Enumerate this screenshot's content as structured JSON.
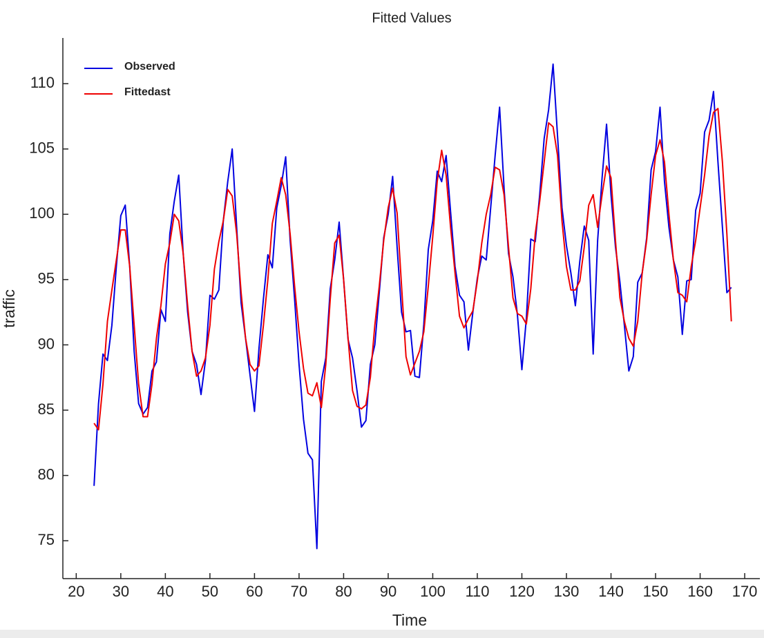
{
  "chart_data": {
    "type": "line",
    "title": "Fitted Values",
    "x_label": "Time",
    "y_label": "traffic",
    "x": [
      24,
      25,
      26,
      27,
      28,
      29,
      30,
      31,
      32,
      33,
      34,
      35,
      36,
      37,
      38,
      39,
      40,
      41,
      42,
      43,
      44,
      45,
      46,
      47,
      48,
      49,
      50,
      51,
      52,
      53,
      54,
      55,
      56,
      57,
      58,
      59,
      60,
      61,
      62,
      63,
      64,
      65,
      66,
      67,
      68,
      69,
      70,
      71,
      72,
      73,
      74,
      75,
      76,
      77,
      78,
      79,
      80,
      81,
      82,
      83,
      84,
      85,
      86,
      87,
      88,
      89,
      90,
      91,
      92,
      93,
      94,
      95,
      96,
      97,
      98,
      99,
      100,
      101,
      102,
      103,
      104,
      105,
      106,
      107,
      108,
      109,
      110,
      111,
      112,
      113,
      114,
      115,
      116,
      117,
      118,
      119,
      120,
      121,
      122,
      123,
      124,
      125,
      126,
      127,
      128,
      129,
      130,
      131,
      132,
      133,
      134,
      135,
      136,
      137,
      138,
      139,
      140,
      141,
      142,
      143,
      144,
      145,
      146,
      147,
      148,
      149,
      150,
      151,
      152,
      153,
      154,
      155,
      156,
      157,
      158,
      159,
      160,
      161,
      162,
      163,
      164,
      165,
      166,
      167
    ],
    "series": [
      {
        "name": "Observed",
        "color": "#0000e0",
        "values": [
          79.2,
          85.5,
          89.3,
          88.8,
          91.5,
          96,
          99.9,
          100.7,
          96,
          89.5,
          85.5,
          84.7,
          85.2,
          88,
          88.7,
          92.7,
          91.8,
          98.5,
          101,
          103,
          97,
          92.5,
          89.5,
          88.5,
          86.2,
          88.8,
          93.8,
          93.5,
          94.2,
          99.5,
          102.5,
          105,
          99,
          93.2,
          90.5,
          87.7,
          84.9,
          89.7,
          93.5,
          96.9,
          95.9,
          100.5,
          102.2,
          104.4,
          98,
          93.5,
          88.5,
          84.3,
          81.7,
          81.2,
          74.4,
          87.2,
          89,
          94.3,
          96.5,
          99.4,
          95,
          90.4,
          89,
          86.5,
          83.7,
          84.2,
          88.5,
          90,
          94,
          98.2,
          100,
          102.9,
          97.5,
          92.5,
          91,
          91.1,
          87.6,
          87.5,
          91.6,
          97.3,
          99.5,
          103.3,
          102.5,
          104.5,
          100.2,
          96,
          93.8,
          93.3,
          89.6,
          92.5,
          95.1,
          96.8,
          96.5,
          100.5,
          104.5,
          108.2,
          102,
          97,
          95.2,
          92.3,
          88.1,
          92,
          98.1,
          97.9,
          101.5,
          105.8,
          108,
          111.5,
          106,
          100.5,
          97.6,
          95.5,
          93,
          96.4,
          99.1,
          98,
          89.3,
          98,
          102.8,
          106.9,
          101.5,
          97.5,
          94.8,
          91.5,
          88,
          89.1,
          94.8,
          95.5,
          98.2,
          103.4,
          104.8,
          108.2,
          102.5,
          99,
          96.5,
          95.2,
          90.8,
          94.9,
          95,
          100.3,
          101.6,
          106.3,
          107.2,
          109.4,
          104,
          99,
          94,
          94.4
        ]
      },
      {
        "name": "Fittedast",
        "color": "#ee0000",
        "values": [
          84,
          83.5,
          87,
          91.8,
          94.2,
          96.5,
          98.8,
          98.8,
          96,
          91.5,
          87,
          84.5,
          84.5,
          87,
          90.5,
          93,
          96.2,
          97.8,
          100,
          99.5,
          97,
          93,
          89.5,
          87.6,
          88,
          89,
          91.5,
          95.8,
          97.9,
          99.5,
          101.9,
          101.4,
          98.5,
          94,
          90.5,
          88.5,
          88,
          88.4,
          91.5,
          95,
          99.3,
          101,
          102.8,
          101.5,
          98.5,
          94.5,
          91,
          88.2,
          86.3,
          86.1,
          87.1,
          85.2,
          88.5,
          93.5,
          97.8,
          98.4,
          95,
          90.5,
          86.5,
          85.3,
          85.1,
          85.4,
          87.5,
          91.5,
          94.5,
          98,
          100.5,
          102,
          100.1,
          94.5,
          89.1,
          87.7,
          88.6,
          89.5,
          91,
          94.5,
          98.3,
          102.5,
          104.9,
          103,
          99,
          95.5,
          92.2,
          91.3,
          92,
          92.6,
          94.9,
          97.8,
          100,
          101.5,
          103.6,
          103.4,
          101.5,
          97.5,
          93.6,
          92.4,
          92.2,
          91.6,
          94.3,
          98.5,
          101,
          104,
          107,
          106.7,
          104.5,
          99.5,
          96,
          94.2,
          94.2,
          94.9,
          97.5,
          100.7,
          101.5,
          99,
          101.5,
          103.7,
          102.8,
          98,
          93.6,
          91.8,
          90.5,
          89.9,
          91.8,
          95.5,
          98,
          101.5,
          104.5,
          105.7,
          104,
          100,
          96.5,
          94,
          93.8,
          93.3,
          96,
          98,
          100.5,
          103,
          106,
          107.8,
          108.1,
          104,
          98.5,
          91.8
        ]
      }
    ],
    "xlim": [
      17,
      173.4
    ],
    "ylim": [
      72.1,
      113.5
    ],
    "xticks": [
      20,
      30,
      40,
      50,
      60,
      70,
      80,
      90,
      100,
      110,
      120,
      130,
      140,
      150,
      160,
      170
    ],
    "yticks": [
      75,
      80,
      85,
      90,
      95,
      100,
      105,
      110
    ],
    "legend": "upper left"
  }
}
